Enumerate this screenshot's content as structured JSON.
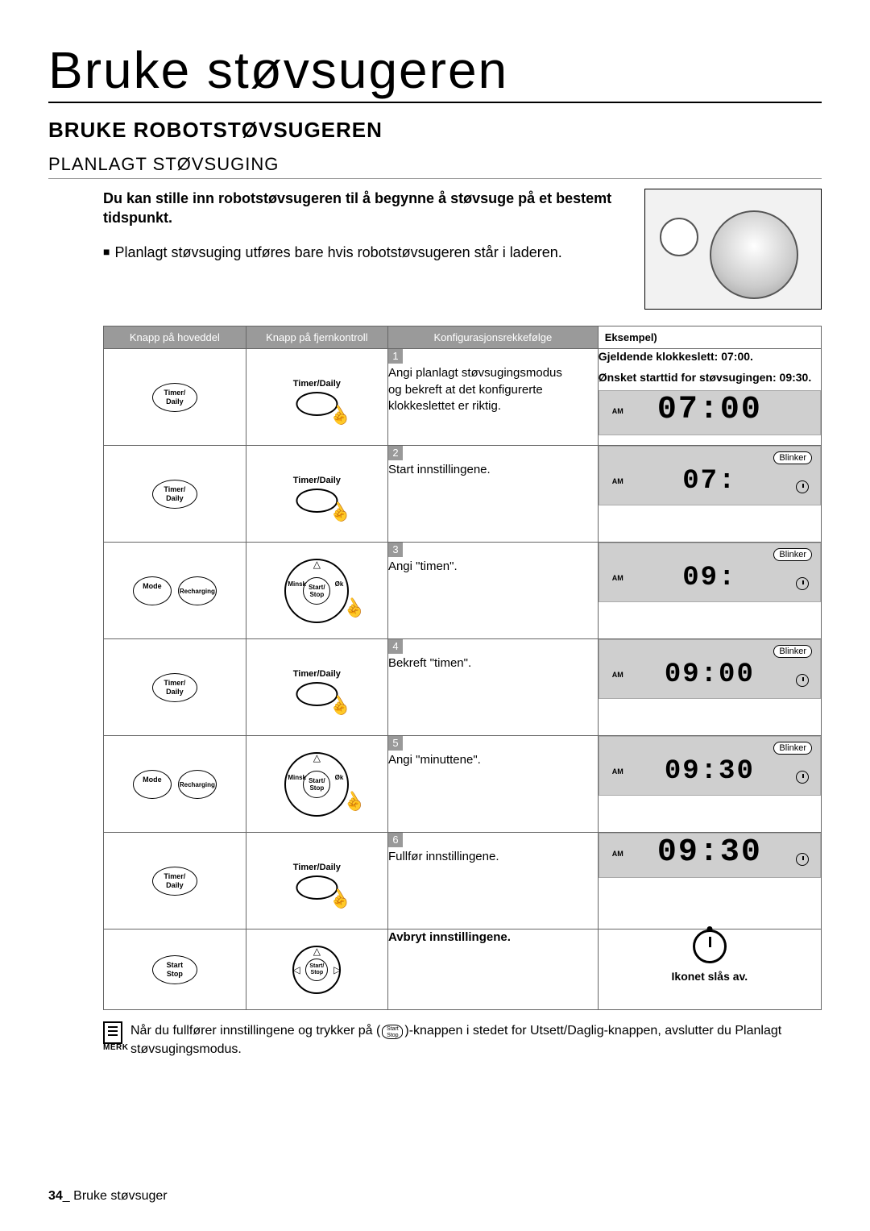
{
  "page": {
    "mainTitle": "Bruke støvsugeren",
    "subTitle": "BRUKE ROBOTSTØVSUGEREN",
    "sectionTitle": "PLANLAGT STØVSUGING",
    "footerPage": "34",
    "footerText": "Bruke støvsuger"
  },
  "intro": {
    "bold": "Du kan stille inn robotstøvsugeren til å begynne å støvsuge på et bestemt tidspunkt.",
    "paragraph": "Planlagt støvsuging utføres bare hvis robotstøvsugeren står i laderen."
  },
  "table": {
    "headers": {
      "col1": "Knapp på hoveddel",
      "col2": "Knapp på fjernkontroll",
      "col3": "Konfigurasjonsrekkefølge",
      "col4": "Eksempel)"
    },
    "example_header": {
      "line1": "Gjeldende klokkeslett: 07:00.",
      "line2": "Ønsket starttid for støvsugingen: 09:30."
    },
    "buttons": {
      "timerDaily": "Timer/\nDaily",
      "timerDailyLabel": "Timer/Daily",
      "mode": "Mode",
      "recharging": "Recharging",
      "minsk": "Minsk",
      "ok": "Øk",
      "startStop": "Start/\nStop",
      "startStopStk": "Start\nStop"
    },
    "steps": {
      "s1": "Angi planlagt støvsugingsmodus og bekreft at det konfigurerte klokkeslettet er riktig.",
      "s2": "Start innstillingene.",
      "s3": "Angi \"timen\".",
      "s4": "Bekreft \"timen\".",
      "s5": "Angi \"minuttene\".",
      "s6": "Fullfør innstillingene.",
      "sCancel": "Avbryt innstillingene."
    },
    "lcd": {
      "blinker": "Blinker",
      "am": "AM",
      "time1": "07:00",
      "time2": "07:",
      "time3": "09:",
      "time4": "09:00",
      "time5": "09:30",
      "time6": "09:30",
      "ikonet": "Ikonet slås av."
    }
  },
  "note": {
    "merk": "MERK",
    "text1": "Når du fullfører innstillingene og trykker på (",
    "startStopText": "Start\nStop",
    "text2": ")-knappen i stedet for Utsett/Daglig-knappen, avslutter du Planlagt støvsugingsmodus."
  },
  "colors": {
    "headerBg": "#9a9a9a",
    "lcdBg": "#cfcfcf",
    "border": "#666666"
  }
}
